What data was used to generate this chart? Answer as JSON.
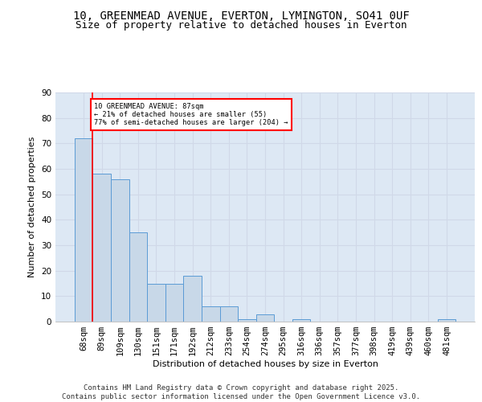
{
  "title_line1": "10, GREENMEAD AVENUE, EVERTON, LYMINGTON, SO41 0UF",
  "title_line2": "Size of property relative to detached houses in Everton",
  "xlabel": "Distribution of detached houses by size in Everton",
  "ylabel": "Number of detached properties",
  "categories": [
    "68sqm",
    "89sqm",
    "109sqm",
    "130sqm",
    "151sqm",
    "171sqm",
    "192sqm",
    "212sqm",
    "233sqm",
    "254sqm",
    "274sqm",
    "295sqm",
    "316sqm",
    "336sqm",
    "357sqm",
    "377sqm",
    "398sqm",
    "419sqm",
    "439sqm",
    "460sqm",
    "481sqm"
  ],
  "values": [
    72,
    58,
    56,
    35,
    15,
    15,
    18,
    6,
    6,
    1,
    3,
    0,
    1,
    0,
    0,
    0,
    0,
    0,
    0,
    0,
    1
  ],
  "bar_color": "#c8d8e8",
  "bar_edge_color": "#5b9bd5",
  "grid_color": "#d0d8e8",
  "background_color": "#dde8f4",
  "vline_x": 0.5,
  "vline_color": "red",
  "annotation_text": "10 GREENMEAD AVENUE: 87sqm\n← 21% of detached houses are smaller (55)\n77% of semi-detached houses are larger (204) →",
  "annotation_box_color": "red",
  "ylim": [
    0,
    90
  ],
  "yticks": [
    0,
    10,
    20,
    30,
    40,
    50,
    60,
    70,
    80,
    90
  ],
  "footer_text": "Contains HM Land Registry data © Crown copyright and database right 2025.\nContains public sector information licensed under the Open Government Licence v3.0.",
  "title_fontsize": 10,
  "subtitle_fontsize": 9,
  "label_fontsize": 8,
  "tick_fontsize": 7.5,
  "footer_fontsize": 6.5
}
